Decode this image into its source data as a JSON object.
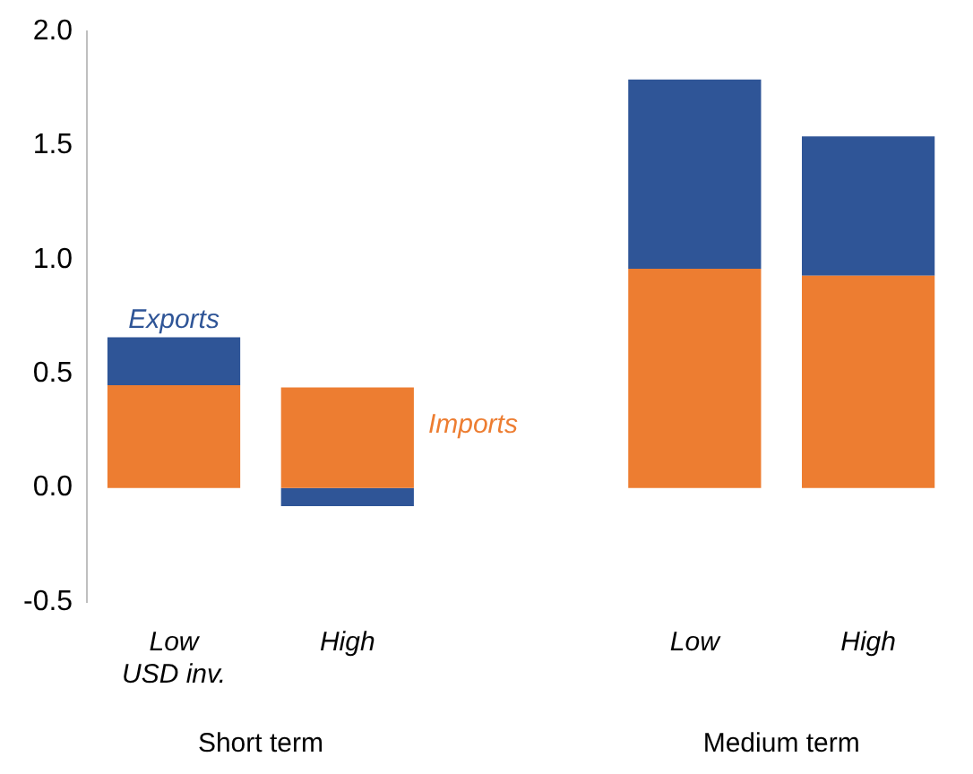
{
  "chart_data": {
    "type": "bar",
    "stacked": true,
    "categories": [
      "Low\nUSD inv.",
      "High",
      null,
      "Low",
      "High"
    ],
    "series": [
      {
        "name": "Imports",
        "color": "#ed7d31",
        "values": [
          0.45,
          0.44,
          null,
          0.96,
          0.93
        ]
      },
      {
        "name": "Exports",
        "color": "#2f5597",
        "values": [
          0.21,
          -0.08,
          null,
          0.83,
          0.61
        ]
      }
    ],
    "ylim": [
      -0.5,
      2.0
    ],
    "yticks": [
      {
        "value": -0.5,
        "label": "-0.5"
      },
      {
        "value": 0,
        "label": "0.0"
      },
      {
        "value": 0.5,
        "label": "0.5"
      },
      {
        "value": 1,
        "label": "1.0"
      },
      {
        "value": 1.5,
        "label": "1.5"
      },
      {
        "value": 2,
        "label": "2.0"
      }
    ],
    "grid": false,
    "legend": false,
    "annotations": [
      "Short term",
      "Medium term"
    ]
  }
}
